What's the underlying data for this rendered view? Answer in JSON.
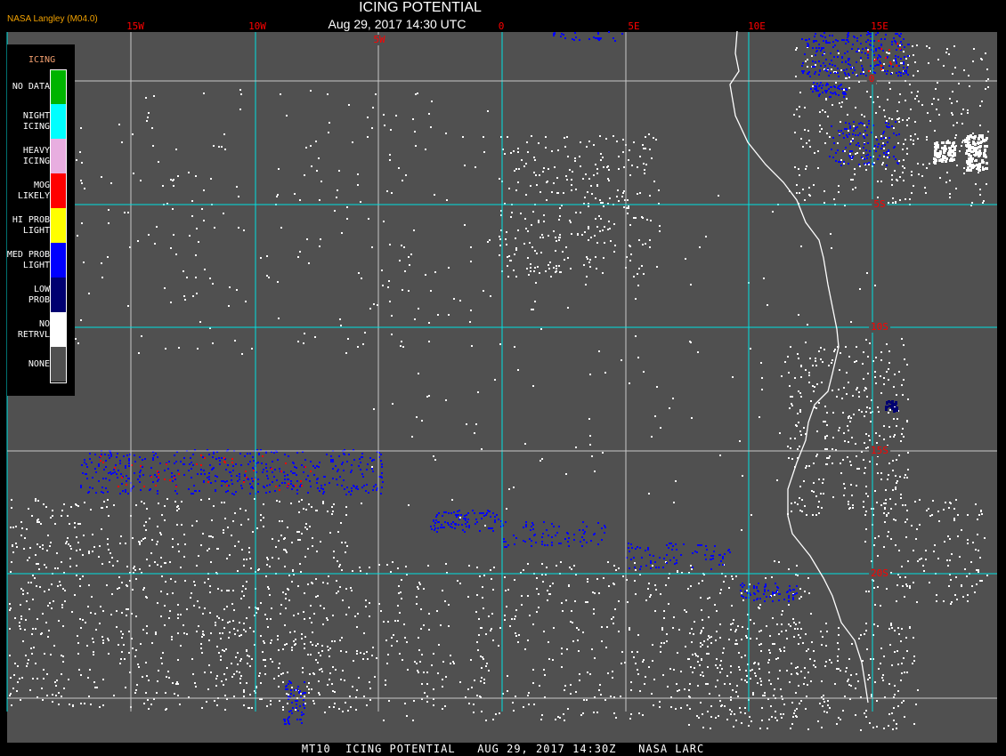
{
  "header": {
    "title": "ICING POTENTIAL",
    "subtitle": "Aug 29, 2017 14:30 UTC",
    "brand": "NASA Langley (M04.0)"
  },
  "longitude_labels": [
    "15W",
    "10W",
    "5W",
    "0",
    "5E",
    "10E",
    "15E"
  ],
  "latitude_labels": [
    "0",
    "5S",
    "10S",
    "15S",
    "20S"
  ],
  "legend": {
    "title": "ICING",
    "items": [
      {
        "label": "NO DATA",
        "color": "#00b400"
      },
      {
        "label": "NIGHT\nICING",
        "color": "#00ffff"
      },
      {
        "label": "HEAVY\nICING",
        "color": "#e8aee0"
      },
      {
        "label": "MOG\nLIKELY",
        "color": "#ff0000"
      },
      {
        "label": "HI PROB\nLIGHT",
        "color": "#ffff00"
      },
      {
        "label": "MED PROB\nLIGHT",
        "color": "#0000ff"
      },
      {
        "label": "LOW\nPROB",
        "color": "#000070"
      },
      {
        "label": "NO\nRETRVL",
        "color": "#ffffff"
      },
      {
        "label": "NONE",
        "color": "#505050"
      }
    ]
  },
  "colors": {
    "background": "#505050",
    "grid": "#00e0e0",
    "coastline": "#ffffff",
    "labels": "#ff0000"
  },
  "footer": "MT10  ICING POTENTIAL   AUG 29, 2017 14:30Z   NASA LARC"
}
